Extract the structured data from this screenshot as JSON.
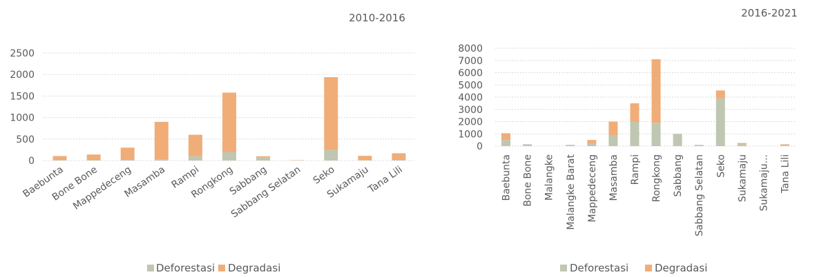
{
  "colors": {
    "deforestasi": "#bfc7b2",
    "degradasi": "#f0ad78"
  },
  "chart_data": [
    {
      "type": "bar",
      "stacked": true,
      "title": "2010-2016",
      "xlabel": "",
      "ylabel": "",
      "ylim": [
        0,
        2500
      ],
      "yticks": [
        0,
        500,
        1000,
        1500,
        2000,
        2500
      ],
      "grid": true,
      "legend_position": "bottom",
      "categories": [
        "Baebunta",
        "Bone Bone",
        "Mappedeceng",
        "Masamba",
        "Rampi",
        "Rongkong",
        "Sabbang",
        "Sabbang Selatan",
        "Seko",
        "Sukamaju",
        "Tana Lili"
      ],
      "series": [
        {
          "name": "Deforestasi",
          "values": [
            10,
            10,
            15,
            30,
            100,
            200,
            70,
            5,
            250,
            10,
            15
          ]
        },
        {
          "name": "Degradasi",
          "values": [
            95,
            130,
            285,
            870,
            500,
            1380,
            30,
            5,
            1690,
            100,
            155
          ]
        }
      ]
    },
    {
      "type": "bar",
      "stacked": true,
      "title": "2016-2021",
      "xlabel": "",
      "ylabel": "",
      "ylim": [
        0,
        8000
      ],
      "yticks": [
        0,
        1000,
        2000,
        3000,
        4000,
        5000,
        6000,
        7000,
        8000
      ],
      "grid": true,
      "legend_position": "bottom",
      "categories": [
        "Baebunta",
        "Bone Bone",
        "Malangke",
        "Malangke Barat",
        "Mappedeceng",
        "Masamba",
        "Rampi",
        "Rongkong",
        "Sabbang",
        "Sabbang Selatan",
        "Seko",
        "Sukamaju",
        "Sukamaju...",
        "Tana Lili"
      ],
      "series": [
        {
          "name": "Deforestasi",
          "values": [
            500,
            150,
            0,
            100,
            200,
            900,
            2000,
            1900,
            1000,
            100,
            3900,
            150,
            0,
            100
          ]
        },
        {
          "name": "Degradasi",
          "values": [
            550,
            0,
            0,
            0,
            300,
            1100,
            1500,
            5200,
            0,
            0,
            650,
            100,
            0,
            50
          ]
        }
      ]
    }
  ]
}
